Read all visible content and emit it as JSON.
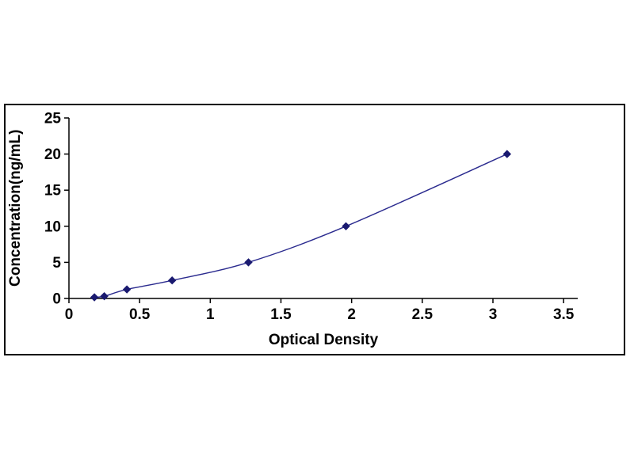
{
  "chart_data": {
    "type": "line",
    "title": "",
    "xlabel": "Optical Density",
    "ylabel": "Concentration(ng/mL)",
    "x": [
      0.18,
      0.25,
      0.41,
      0.73,
      1.27,
      1.96,
      3.1
    ],
    "y": [
      0.16,
      0.31,
      1.25,
      2.5,
      5,
      10,
      20
    ],
    "xlim": [
      0,
      3.6
    ],
    "ylim": [
      0,
      25
    ],
    "xticks": [
      0,
      0.5,
      1,
      1.5,
      2,
      2.5,
      3,
      3.5
    ],
    "yticks": [
      0,
      5,
      10,
      15,
      20,
      25
    ],
    "grid": false,
    "legend": "none",
    "marker": "diamond",
    "line_color": "#2b2b8f",
    "marker_color": "#1a1a70",
    "axis_color": "#000000",
    "frame_color": "#000000",
    "background_color": "#ffffff"
  }
}
